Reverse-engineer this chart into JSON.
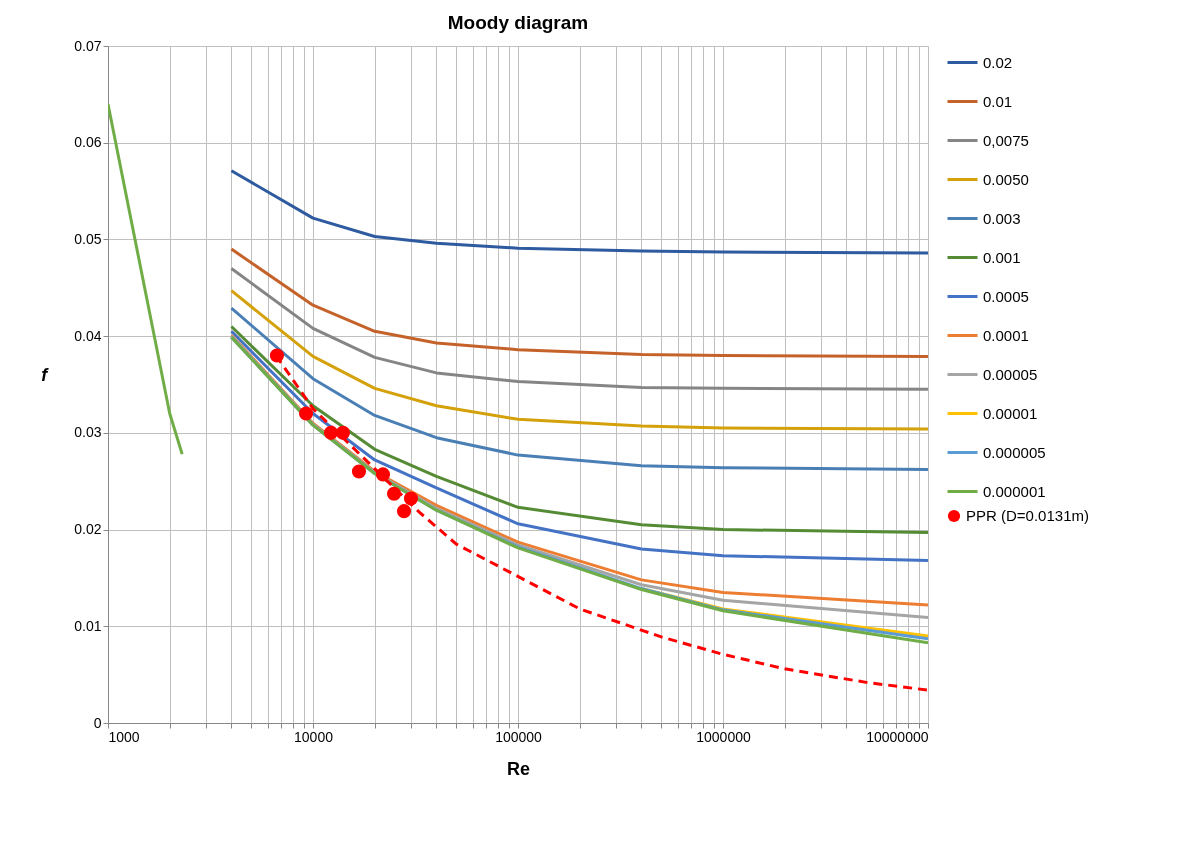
{
  "chart_data": {
    "type": "line",
    "title": "Moody diagram",
    "xlabel": "Re",
    "ylabel": "f",
    "log": "x",
    "grid": true,
    "legend": "right",
    "xlim": [
      1000,
      10000000
    ],
    "xticks": [
      1000,
      {
        "value": 2000,
        "label": null
      },
      {
        "value": 3000,
        "label": null
      },
      {
        "value": 4000,
        "label": null
      },
      {
        "value": 5000,
        "label": null
      },
      {
        "value": 6000,
        "label": null
      },
      {
        "value": 7000,
        "label": null
      },
      {
        "value": 8000,
        "label": null
      },
      {
        "value": 9000,
        "label": null
      },
      10000,
      {
        "value": 20000,
        "label": null
      },
      {
        "value": 30000,
        "label": null
      },
      {
        "value": 40000,
        "label": null
      },
      {
        "value": 50000,
        "label": null
      },
      {
        "value": 60000,
        "label": null
      },
      {
        "value": 70000,
        "label": null
      },
      {
        "value": 80000,
        "label": null
      },
      {
        "value": 90000,
        "label": null
      },
      100000,
      {
        "value": 200000,
        "label": null
      },
      {
        "value": 300000,
        "label": null
      },
      {
        "value": 400000,
        "label": null
      },
      {
        "value": 500000,
        "label": null
      },
      {
        "value": 600000,
        "label": null
      },
      {
        "value": 700000,
        "label": null
      },
      {
        "value": 800000,
        "label": null
      },
      {
        "value": 900000,
        "label": null
      },
      1000000,
      {
        "value": 2000000,
        "label": null
      },
      {
        "value": 3000000,
        "label": null
      },
      {
        "value": 4000000,
        "label": null
      },
      {
        "value": 5000000,
        "label": null
      },
      {
        "value": 6000000,
        "label": null
      },
      {
        "value": 7000000,
        "label": null
      },
      {
        "value": 8000000,
        "label": null
      },
      {
        "value": 9000000,
        "label": null
      },
      10000000
    ],
    "ylim": [
      0,
      0.07
    ],
    "yticks": [
      0,
      0.01,
      0.02,
      0.03,
      0.04,
      0.05,
      0.06,
      0.07
    ],
    "series": [
      {
        "name": "0.02",
        "color": "#2e5aa0",
        "x": [
          4000,
          10000,
          20000,
          40000,
          100000,
          400000,
          1000000,
          10000000
        ],
        "values": [
          0.0571,
          0.0522,
          0.0503,
          0.0496,
          0.0491,
          0.0488,
          0.0487,
          0.0486
        ]
      },
      {
        "name": "0.01",
        "color": "#c5622a",
        "x": [
          4000,
          10000,
          20000,
          40000,
          100000,
          400000,
          1000000,
          10000000
        ],
        "values": [
          0.049,
          0.0432,
          0.0405,
          0.0393,
          0.0386,
          0.0381,
          0.038,
          0.0379
        ]
      },
      {
        "name": "0,0075",
        "color": "#858585",
        "x": [
          4000,
          10000,
          20000,
          40000,
          100000,
          400000,
          1000000,
          10000000
        ],
        "values": [
          0.047,
          0.0408,
          0.0378,
          0.0362,
          0.0353,
          0.0347,
          0.0346,
          0.0345
        ]
      },
      {
        "name": "0.0050",
        "color": "#d4a10a",
        "x": [
          4000,
          10000,
          20000,
          40000,
          100000,
          400000,
          1000000,
          10000000
        ],
        "values": [
          0.0447,
          0.0379,
          0.0346,
          0.0328,
          0.0314,
          0.0307,
          0.0305,
          0.0304
        ]
      },
      {
        "name": "0.003",
        "color": "#4a7fb5",
        "x": [
          4000,
          10000,
          20000,
          40000,
          100000,
          400000,
          1000000,
          10000000
        ],
        "values": [
          0.0429,
          0.0356,
          0.0318,
          0.0295,
          0.0277,
          0.0266,
          0.0264,
          0.0262
        ]
      },
      {
        "name": "0.001",
        "color": "#558b35",
        "x": [
          4000,
          10000,
          20000,
          40000,
          100000,
          400000,
          1000000,
          10000000
        ],
        "values": [
          0.041,
          0.0328,
          0.0283,
          0.0255,
          0.0223,
          0.0205,
          0.02,
          0.0197
        ]
      },
      {
        "name": "0.0005",
        "color": "#4472c4",
        "x": [
          4000,
          10000,
          20000,
          40000,
          100000,
          400000,
          1000000,
          10000000
        ],
        "values": [
          0.0405,
          0.032,
          0.0272,
          0.0243,
          0.0206,
          0.018,
          0.0173,
          0.0168
        ]
      },
      {
        "name": "0.0001",
        "color": "#ed7d31",
        "x": [
          4000,
          10000,
          20000,
          40000,
          100000,
          400000,
          1000000,
          10000000
        ],
        "values": [
          0.0401,
          0.031,
          0.026,
          0.0225,
          0.0187,
          0.0148,
          0.0135,
          0.0122
        ]
      },
      {
        "name": "0.00005",
        "color": "#a5a5a5",
        "x": [
          4000,
          10000,
          20000,
          40000,
          100000,
          400000,
          1000000,
          10000000
        ],
        "values": [
          0.04,
          0.0309,
          0.0259,
          0.0222,
          0.0184,
          0.0143,
          0.0127,
          0.0109
        ]
      },
      {
        "name": "0.00001",
        "color": "#ffc000",
        "x": [
          400000,
          1000000,
          10000000
        ],
        "values": [
          0.0139,
          0.0118,
          0.009
        ]
      },
      {
        "name": "0.000005",
        "color": "#5b9bd5",
        "x": [
          4000,
          10000,
          20000,
          40000,
          100000,
          400000,
          1000000,
          10000000
        ],
        "values": [
          0.0399,
          0.0308,
          0.0258,
          0.022,
          0.0182,
          0.0139,
          0.0117,
          0.0087
        ]
      },
      {
        "name": "0.000001",
        "color": "#70ad47",
        "x": [
          4000,
          10000,
          20000,
          40000,
          100000,
          400000,
          1000000,
          10000000
        ],
        "values": [
          0.0399,
          0.0308,
          0.0258,
          0.022,
          0.0181,
          0.0138,
          0.0116,
          0.0083
        ]
      },
      {
        "color": "#70ad47",
        "x": [
          1000,
          2000,
          2300
        ],
        "values": [
          0.064,
          0.032,
          0.0278
        ]
      },
      {
        "color": "#ff0000",
        "line_style": "dashed",
        "x": [
          6600,
          10000,
          33000,
          50000,
          200000,
          500000,
          1000000,
          2000000,
          5000000,
          10000000
        ],
        "values": [
          0.038,
          0.0325,
          0.0218,
          0.0185,
          0.0118,
          0.0089,
          0.0071,
          0.0056,
          0.0042,
          0.0034
        ]
      },
      {
        "name": "PPR (D=0.0131m)",
        "type": "scatter",
        "color": "#ff0000",
        "x": [
          6670,
          9250,
          12240,
          14000,
          16760,
          21950,
          24850,
          27800,
          30060
        ],
        "values": [
          0.038,
          0.032,
          0.03,
          0.03,
          0.026,
          0.0257,
          0.0237,
          0.0219,
          0.0232
        ]
      }
    ]
  }
}
